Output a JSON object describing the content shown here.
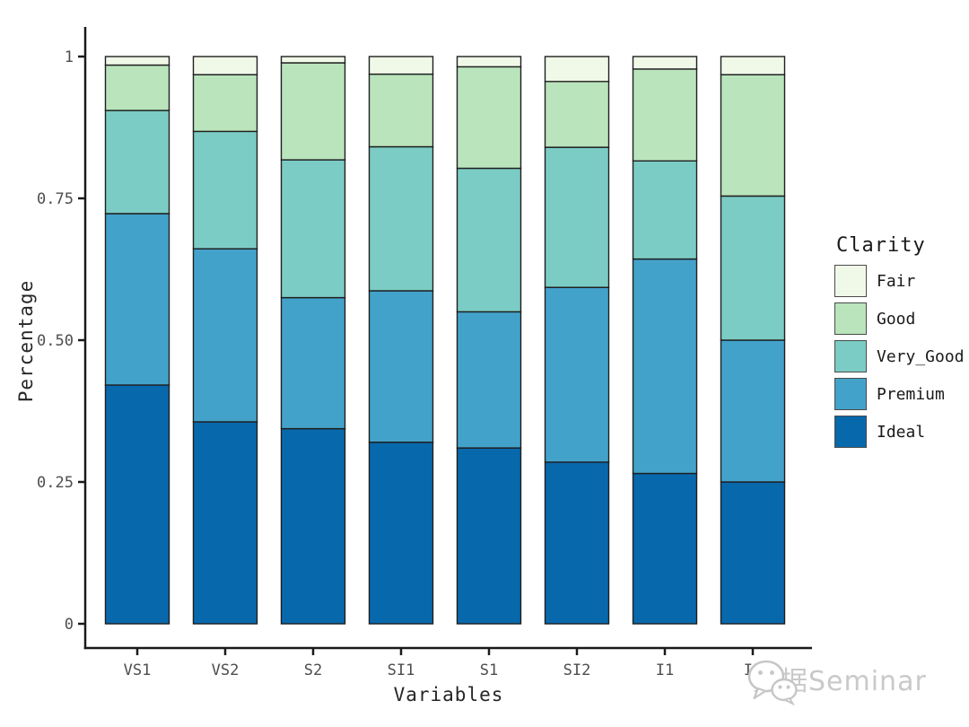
{
  "chart_data": {
    "type": "bar",
    "subtype": "stacked-100-percent",
    "title": "",
    "xlabel": "Variables",
    "ylabel": "Percentage",
    "categories": [
      "VS1",
      "VS2",
      "S2",
      "SI1",
      "S1",
      "SI2",
      "I1",
      "IF"
    ],
    "series": [
      {
        "name": "Ideal",
        "color": "#0868ac",
        "values": [
          0.421,
          0.356,
          0.344,
          0.32,
          0.31,
          0.285,
          0.265,
          0.25
        ]
      },
      {
        "name": "Premium",
        "color": "#43a2ca",
        "values": [
          0.302,
          0.305,
          0.231,
          0.267,
          0.24,
          0.308,
          0.378,
          0.25
        ]
      },
      {
        "name": "Very_Good",
        "color": "#7bccc4",
        "values": [
          0.182,
          0.207,
          0.243,
          0.254,
          0.253,
          0.247,
          0.173,
          0.254
        ]
      },
      {
        "name": "Good",
        "color": "#bae4bc",
        "values": [
          0.08,
          0.1,
          0.171,
          0.128,
          0.179,
          0.116,
          0.162,
          0.214
        ]
      },
      {
        "name": "Fair",
        "color": "#f0f9e8",
        "values": [
          0.015,
          0.032,
          0.011,
          0.031,
          0.018,
          0.044,
          0.022,
          0.032
        ]
      }
    ],
    "stack_order": "bottom-to-top",
    "ylim": [
      0,
      1
    ],
    "y_ticks": [
      {
        "value": 0,
        "label": "0"
      },
      {
        "value": 0.25,
        "label": "0.25"
      },
      {
        "value": 0.5,
        "label": "0.50"
      },
      {
        "value": 0.75,
        "label": "0.75"
      },
      {
        "value": 1,
        "label": "1"
      }
    ],
    "grid": false,
    "bar_border_color": "#1f1f1f",
    "axis_color": "#1a1a1a",
    "tick_label_color": "#4d4d4d",
    "legend_position": "right",
    "legend": {
      "title": "Clarity",
      "entries": [
        "Fair",
        "Good",
        "Very_Good",
        "Premium",
        "Ideal"
      ]
    }
  },
  "watermark": {
    "text": "数据Seminar",
    "icon": "wechat-icon",
    "color": "#c9c9c9"
  }
}
